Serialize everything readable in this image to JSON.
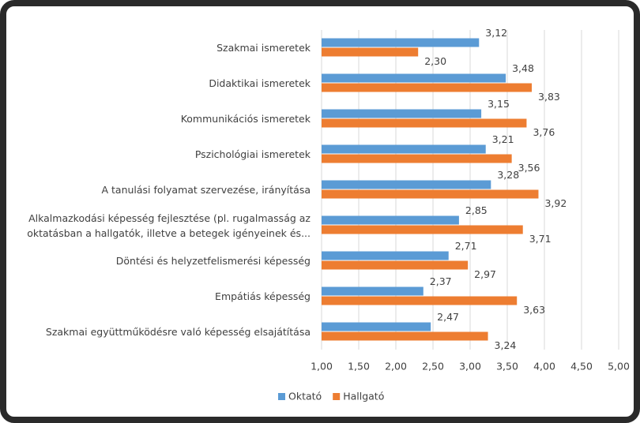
{
  "chart_data": {
    "type": "hbar",
    "categories": [
      "Szakmai ismeretek",
      "Didaktikai ismeretek",
      "Kommunikációs ismeretek",
      "Pszichológiai ismeretek",
      "A tanulási folyamat szervezése, irányítása",
      "Alkalmazkodási képesség fejlesztése (pl. rugalmasság az oktatásban a hallgatók, illetve a betegek igényeinek és...",
      "Döntési és helyzetfelismerési képesség",
      "Empátiás képesség",
      "Szakmai együttműködésre való képesség elsajátítása"
    ],
    "series": [
      {
        "name": "Oktató",
        "color": "#5b9bd5",
        "values": [
          3.12,
          3.48,
          3.15,
          3.21,
          3.28,
          2.85,
          2.71,
          2.37,
          2.47
        ],
        "value_labels": [
          "3,12",
          "3,48",
          "3,15",
          "3,21",
          "3,28",
          "2,85",
          "2,71",
          "2,37",
          "2,47"
        ]
      },
      {
        "name": "Hallgató",
        "color": "#ed7d31",
        "values": [
          2.3,
          3.83,
          3.76,
          3.56,
          3.92,
          3.71,
          2.97,
          3.63,
          3.24
        ],
        "value_labels": [
          "2,30",
          "3,83",
          "3,76",
          "3,56",
          "3,92",
          "3,71",
          "2,97",
          "3,63",
          "3,24"
        ]
      }
    ],
    "xlim": [
      1,
      5
    ],
    "xticks": [
      {
        "value": 1,
        "label": "1,00"
      },
      {
        "value": 1.5,
        "label": "1,50"
      },
      {
        "value": 2,
        "label": "2,00"
      },
      {
        "value": 2.5,
        "label": "2,50"
      },
      {
        "value": 3,
        "label": "3,00"
      },
      {
        "value": 3.5,
        "label": "3,50"
      },
      {
        "value": 4,
        "label": "4,00"
      },
      {
        "value": 4.5,
        "label": "4,50"
      },
      {
        "value": 5,
        "label": "5,00"
      }
    ],
    "grid": true,
    "legend": "bottom"
  }
}
